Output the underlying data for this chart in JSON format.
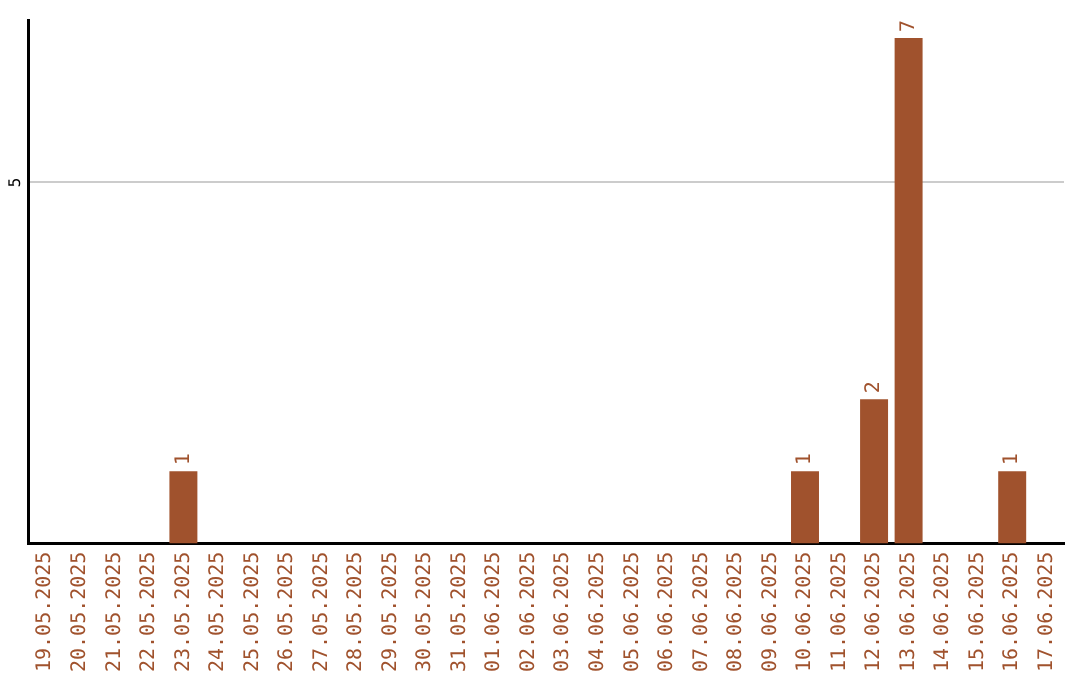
{
  "chart_data": {
    "type": "bar",
    "categories": [
      "19.05.2025",
      "20.05.2025",
      "21.05.2025",
      "22.05.2025",
      "23.05.2025",
      "24.05.2025",
      "25.05.2025",
      "26.05.2025",
      "27.05.2025",
      "28.05.2025",
      "29.05.2025",
      "30.05.2025",
      "31.05.2025",
      "01.06.2025",
      "02.06.2025",
      "03.06.2025",
      "04.06.2025",
      "05.06.2025",
      "06.06.2025",
      "07.06.2025",
      "08.06.2025",
      "09.06.2025",
      "10.06.2025",
      "11.06.2025",
      "12.06.2025",
      "13.06.2025",
      "14.06.2025",
      "15.06.2025",
      "16.06.2025",
      "17.06.2025"
    ],
    "values": [
      0,
      0,
      0,
      0,
      1,
      0,
      0,
      0,
      0,
      0,
      0,
      0,
      0,
      0,
      0,
      0,
      0,
      0,
      0,
      0,
      0,
      0,
      1,
      0,
      2,
      7,
      0,
      0,
      1,
      0
    ],
    "value_labels": [
      null,
      null,
      null,
      null,
      "1",
      null,
      null,
      null,
      null,
      null,
      null,
      null,
      null,
      null,
      null,
      null,
      null,
      null,
      null,
      null,
      null,
      null,
      "1",
      null,
      "2",
      "7",
      null,
      null,
      "1",
      null
    ],
    "color": "#a0522d",
    "ylim": [
      0,
      7.25
    ],
    "yticks": [
      5
    ],
    "grid": "y",
    "legend": false
  }
}
